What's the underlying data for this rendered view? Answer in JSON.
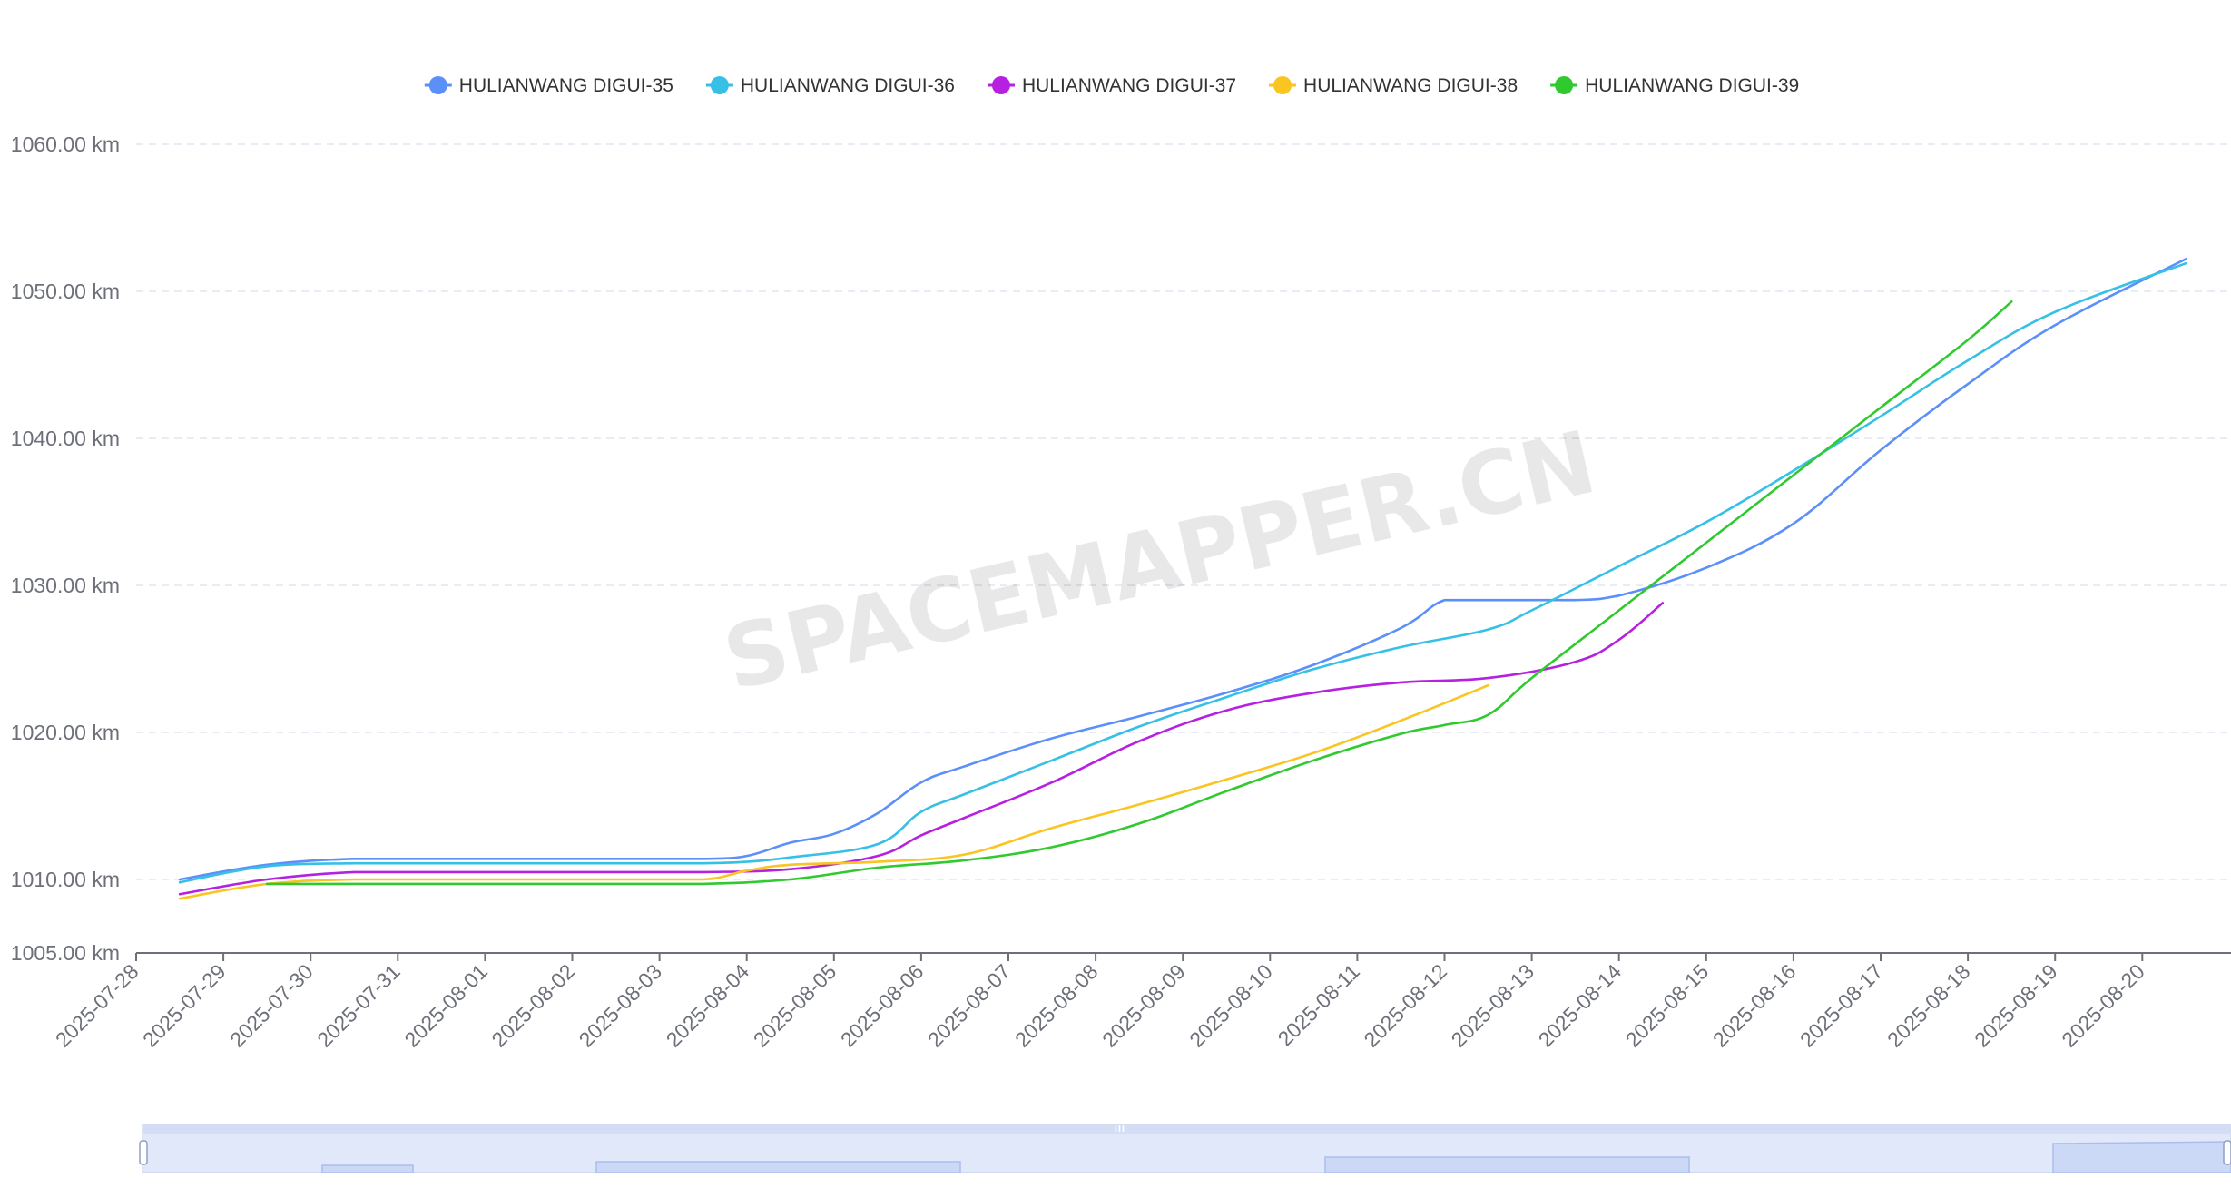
{
  "watermark": "SPACEMAPPER.CN",
  "chart_data": {
    "type": "line",
    "title": "",
    "xlabel": "",
    "ylabel": "",
    "y_unit": "km",
    "ylim": [
      1005,
      1060
    ],
    "y_ticks": [
      "1005.00 km",
      "1010.00 km",
      "1020.00 km",
      "1030.00 km",
      "1040.00 km",
      "1050.00 km",
      "1060.00 km"
    ],
    "x_ticks": [
      "2025-07-28",
      "2025-07-29",
      "2025-07-30",
      "2025-07-31",
      "2025-08-01",
      "2025-08-02",
      "2025-08-03",
      "2025-08-04",
      "2025-08-05",
      "2025-08-06",
      "2025-08-07",
      "2025-08-08",
      "2025-08-09",
      "2025-08-10",
      "2025-08-11",
      "2025-08-12",
      "2025-08-13",
      "2025-08-14",
      "2025-08-15",
      "2025-08-16",
      "2025-08-17",
      "2025-08-18",
      "2025-08-19",
      "2025-08-20"
    ],
    "grid": true,
    "legend_position": "top",
    "smooth": true,
    "series": [
      {
        "name": "HULIANWANG DIGUI-35",
        "color": "#5b8ff9",
        "points": [
          [
            "2025-07-28 12:00",
            1010.0
          ],
          [
            "2025-07-29 12:00",
            1011.0
          ],
          [
            "2025-07-30 12:00",
            1011.4
          ],
          [
            "2025-07-31 12:00",
            1011.4
          ],
          [
            "2025-08-01 12:00",
            1011.4
          ],
          [
            "2025-08-02 12:00",
            1011.4
          ],
          [
            "2025-08-03 12:00",
            1011.4
          ],
          [
            "2025-08-04 00:00",
            1011.6
          ],
          [
            "2025-08-04 12:00",
            1012.5
          ],
          [
            "2025-08-05 00:00",
            1013.1
          ],
          [
            "2025-08-05 12:00",
            1014.5
          ],
          [
            "2025-08-06 00:00",
            1016.6
          ],
          [
            "2025-08-06 12:00",
            1017.7
          ],
          [
            "2025-08-07 12:00",
            1019.6
          ],
          [
            "2025-08-08 12:00",
            1021.1
          ],
          [
            "2025-08-09 12:00",
            1022.7
          ],
          [
            "2025-08-10 12:00",
            1024.6
          ],
          [
            "2025-08-11 12:00",
            1027.1
          ],
          [
            "2025-08-12 00:00",
            1029.0
          ],
          [
            "2025-08-12 12:00",
            1029.0
          ],
          [
            "2025-08-13 12:00",
            1029.0
          ],
          [
            "2025-08-14 00:00",
            1029.3
          ],
          [
            "2025-08-15 00:00",
            1031.2
          ],
          [
            "2025-08-16 00:00",
            1034.2
          ],
          [
            "2025-08-17 00:00",
            1039.2
          ],
          [
            "2025-08-18 00:00",
            1043.7
          ],
          [
            "2025-08-19 00:00",
            1047.7
          ],
          [
            "2025-08-20 12:00",
            1052.2
          ]
        ]
      },
      {
        "name": "HULIANWANG DIGUI-36",
        "color": "#36c0e6",
        "points": [
          [
            "2025-07-28 12:00",
            1009.8
          ],
          [
            "2025-07-29 12:00",
            1010.9
          ],
          [
            "2025-07-30 12:00",
            1011.1
          ],
          [
            "2025-07-31 12:00",
            1011.1
          ],
          [
            "2025-08-01 12:00",
            1011.1
          ],
          [
            "2025-08-02 12:00",
            1011.1
          ],
          [
            "2025-08-03 12:00",
            1011.1
          ],
          [
            "2025-08-04 00:00",
            1011.2
          ],
          [
            "2025-08-04 12:00",
            1011.5
          ],
          [
            "2025-08-05 12:00",
            1012.4
          ],
          [
            "2025-08-06 00:00",
            1014.6
          ],
          [
            "2025-08-06 12:00",
            1015.8
          ],
          [
            "2025-08-07 12:00",
            1018.1
          ],
          [
            "2025-08-08 12:00",
            1020.4
          ],
          [
            "2025-08-09 12:00",
            1022.4
          ],
          [
            "2025-08-10 12:00",
            1024.3
          ],
          [
            "2025-08-11 12:00",
            1025.8
          ],
          [
            "2025-08-12 12:00",
            1027.0
          ],
          [
            "2025-08-13 00:00",
            1028.3
          ],
          [
            "2025-08-14 00:00",
            1031.3
          ],
          [
            "2025-08-15 00:00",
            1034.3
          ],
          [
            "2025-08-16 00:00",
            1037.8
          ],
          [
            "2025-08-17 00:00",
            1041.5
          ],
          [
            "2025-08-18 00:00",
            1045.3
          ],
          [
            "2025-08-19 00:00",
            1048.6
          ],
          [
            "2025-08-20 12:00",
            1051.9
          ]
        ]
      },
      {
        "name": "HULIANWANG DIGUI-37",
        "color": "#b620e0",
        "points": [
          [
            "2025-07-28 12:00",
            1009.0
          ],
          [
            "2025-07-29 12:00",
            1010.0
          ],
          [
            "2025-07-30 12:00",
            1010.5
          ],
          [
            "2025-07-31 12:00",
            1010.5
          ],
          [
            "2025-08-01 12:00",
            1010.5
          ],
          [
            "2025-08-02 12:00",
            1010.5
          ],
          [
            "2025-08-03 12:00",
            1010.5
          ],
          [
            "2025-08-04 12:00",
            1010.7
          ],
          [
            "2025-08-05 12:00",
            1011.6
          ],
          [
            "2025-08-06 00:00",
            1013.0
          ],
          [
            "2025-08-06 12:00",
            1014.2
          ],
          [
            "2025-08-07 12:00",
            1016.6
          ],
          [
            "2025-08-08 12:00",
            1019.4
          ],
          [
            "2025-08-09 12:00",
            1021.5
          ],
          [
            "2025-08-10 12:00",
            1022.7
          ],
          [
            "2025-08-11 12:00",
            1023.4
          ],
          [
            "2025-08-12 12:00",
            1023.7
          ],
          [
            "2025-08-13 12:00",
            1024.8
          ],
          [
            "2025-08-14 00:00",
            1026.3
          ],
          [
            "2025-08-14 12:00",
            1028.8
          ]
        ]
      },
      {
        "name": "HULIANWANG DIGUI-38",
        "color": "#fac421",
        "points": [
          [
            "2025-07-28 12:00",
            1008.7
          ],
          [
            "2025-07-29 12:00",
            1009.7
          ],
          [
            "2025-07-30 12:00",
            1010.0
          ],
          [
            "2025-07-31 12:00",
            1010.0
          ],
          [
            "2025-08-01 12:00",
            1010.0
          ],
          [
            "2025-08-02 12:00",
            1010.0
          ],
          [
            "2025-08-03 12:00",
            1010.0
          ],
          [
            "2025-08-04 00:00",
            1010.6
          ],
          [
            "2025-08-04 12:00",
            1011.0
          ],
          [
            "2025-08-05 12:00",
            1011.2
          ],
          [
            "2025-08-06 12:00",
            1011.7
          ],
          [
            "2025-08-07 12:00",
            1013.5
          ],
          [
            "2025-08-08 12:00",
            1015.1
          ],
          [
            "2025-08-09 12:00",
            1016.8
          ],
          [
            "2025-08-10 12:00",
            1018.6
          ],
          [
            "2025-08-11 12:00",
            1020.8
          ],
          [
            "2025-08-12 12:00",
            1023.2
          ]
        ]
      },
      {
        "name": "HULIANWANG DIGUI-39",
        "color": "#30c92f",
        "points": [
          [
            "2025-07-29 12:00",
            1009.7
          ],
          [
            "2025-07-30 12:00",
            1009.7
          ],
          [
            "2025-07-31 12:00",
            1009.7
          ],
          [
            "2025-08-01 12:00",
            1009.7
          ],
          [
            "2025-08-02 12:00",
            1009.7
          ],
          [
            "2025-08-03 12:00",
            1009.7
          ],
          [
            "2025-08-04 12:00",
            1010.0
          ],
          [
            "2025-08-05 12:00",
            1010.8
          ],
          [
            "2025-08-06 12:00",
            1011.3
          ],
          [
            "2025-08-07 12:00",
            1012.2
          ],
          [
            "2025-08-08 12:00",
            1013.8
          ],
          [
            "2025-08-09 12:00",
            1016.0
          ],
          [
            "2025-08-10 12:00",
            1018.1
          ],
          [
            "2025-08-11 12:00",
            1019.9
          ],
          [
            "2025-08-12 00:00",
            1020.5
          ],
          [
            "2025-08-12 12:00",
            1021.2
          ],
          [
            "2025-08-13 00:00",
            1023.7
          ],
          [
            "2025-08-14 00:00",
            1028.3
          ],
          [
            "2025-08-15 00:00",
            1032.9
          ],
          [
            "2025-08-16 00:00",
            1037.5
          ],
          [
            "2025-08-17 00:00",
            1042.1
          ],
          [
            "2025-08-18 00:00",
            1046.7
          ],
          [
            "2025-08-18 12:00",
            1049.3
          ]
        ]
      }
    ]
  },
  "data_zoom": {
    "range_start": 0,
    "range_end": 100,
    "handle_icon": "grip-icon"
  }
}
